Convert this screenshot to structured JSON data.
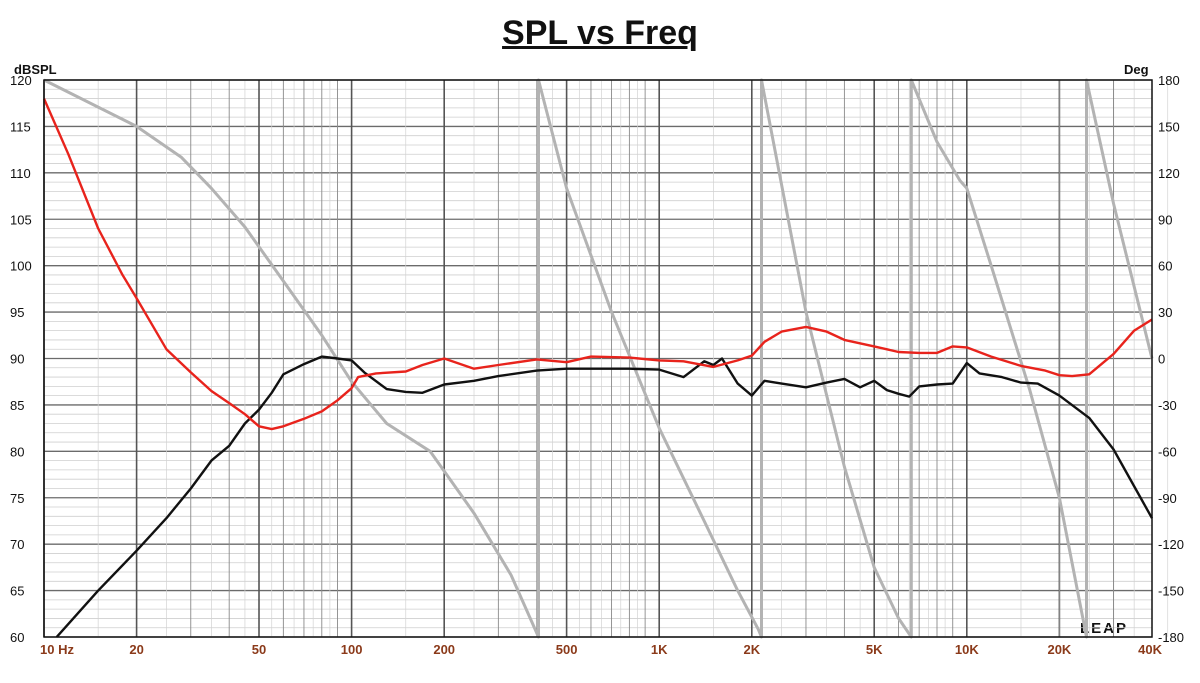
{
  "chart_data": {
    "type": "line",
    "title": "SPL vs Freq",
    "ylabel_left": "dBSPL",
    "ylabel_right": "Deg",
    "x_scale": "log",
    "xlim": [
      10,
      40000
    ],
    "ylim_left": [
      60,
      120
    ],
    "ylim_right": [
      -180,
      180
    ],
    "grid": true,
    "x_tick_values": [
      10,
      20,
      50,
      100,
      200,
      500,
      1000,
      2000,
      5000,
      10000,
      20000,
      40000
    ],
    "x_tick_labels": [
      "10  Hz",
      "20",
      "50",
      "100",
      "200",
      "500",
      "1K",
      "2K",
      "5K",
      "10K",
      "20K",
      "40K"
    ],
    "y_left_tick_labels": [
      "120",
      "115",
      "110",
      "105",
      "100",
      "95",
      "90",
      "85",
      "80",
      "75",
      "70",
      "65",
      "60"
    ],
    "y_right_tick_labels": [
      "180",
      "150",
      "120",
      "90",
      "60",
      "30",
      "0",
      "-30",
      "-60",
      "-90",
      "-120",
      "-150",
      "-180"
    ],
    "logo": "LEAP",
    "series": [
      {
        "axis": "left",
        "color": "#e8231c",
        "x": [
          10,
          12,
          15,
          18,
          20,
          25,
          30,
          35,
          40,
          45,
          50,
          55,
          60,
          70,
          80,
          90,
          100,
          105,
          120,
          150,
          170,
          200,
          250,
          300,
          400,
          500,
          600,
          800,
          1000,
          1200,
          1500,
          1800,
          2000,
          2200,
          2500,
          3000,
          3500,
          4000,
          5000,
          6000,
          7000,
          8000,
          9000,
          10000,
          12000,
          15000,
          18000,
          20000,
          22000,
          25000,
          30000,
          35000,
          40000
        ],
        "y": [
          118,
          112,
          104,
          99,
          96.5,
          91,
          88.5,
          86.5,
          85.2,
          84,
          82.7,
          82.4,
          82.7,
          83.5,
          84.3,
          85.5,
          86.8,
          88,
          88.4,
          88.6,
          89.3,
          90,
          88.9,
          89.3,
          89.9,
          89.6,
          90.2,
          90.1,
          89.8,
          89.7,
          89.1,
          89.8,
          90.3,
          91.8,
          92.9,
          93.4,
          92.9,
          92,
          91.3,
          90.7,
          90.6,
          90.6,
          91.3,
          91.2,
          90.2,
          89.2,
          88.7,
          88.2,
          88.1,
          88.3,
          90.5,
          93,
          94.2
        ]
      },
      {
        "axis": "left",
        "color": "#111111",
        "x": [
          11,
          15,
          20,
          25,
          30,
          35,
          40,
          45,
          50,
          55,
          60,
          70,
          80,
          90,
          100,
          110,
          130,
          150,
          170,
          200,
          250,
          300,
          400,
          500,
          600,
          800,
          1000,
          1200,
          1400,
          1500,
          1600,
          1800,
          2000,
          2200,
          2500,
          3000,
          3500,
          4000,
          4500,
          5000,
          5500,
          6000,
          6500,
          7000,
          8000,
          9000,
          10000,
          11000,
          13000,
          15000,
          17000,
          20000,
          25000,
          30000,
          40000
        ],
        "y": [
          60,
          65,
          69.3,
          72.8,
          76,
          79,
          80.6,
          83,
          84.5,
          86.3,
          88.3,
          89.4,
          90.2,
          90,
          89.8,
          88.5,
          86.7,
          86.4,
          86.3,
          87.2,
          87.6,
          88.1,
          88.7,
          88.9,
          88.9,
          88.9,
          88.8,
          88,
          89.7,
          89.3,
          90,
          87.3,
          86,
          87.6,
          87.3,
          86.9,
          87.4,
          87.8,
          86.9,
          87.6,
          86.6,
          86.2,
          85.9,
          87,
          87.2,
          87.3,
          89.5,
          88.4,
          88,
          87.4,
          87.3,
          86,
          83.6,
          80.2,
          72.8
        ]
      },
      {
        "axis": "right",
        "color": "#b3b3b3",
        "x": [
          10,
          20,
          28,
          35,
          45,
          60,
          80,
          100,
          130,
          180,
          250,
          330,
          405,
          405.1,
          500,
          700,
          1000,
          1400,
          1800,
          2100,
          2150,
          2150.1,
          3000,
          4000,
          5000,
          6000,
          6600,
          6600.1,
          8000,
          9500,
          10000,
          12000,
          16000,
          20000,
          24500,
          24500.1,
          30000,
          40000
        ],
        "y": [
          180,
          150,
          130,
          110,
          85,
          50,
          15,
          -15,
          -42,
          -60,
          -100,
          -140,
          -180,
          180,
          110,
          30,
          -45,
          -105,
          -150,
          -175,
          -180,
          180,
          30,
          -70,
          -135,
          -168,
          -180,
          180,
          140,
          115,
          110,
          60,
          -20,
          -90,
          -180,
          180,
          100,
          0
        ]
      }
    ]
  }
}
